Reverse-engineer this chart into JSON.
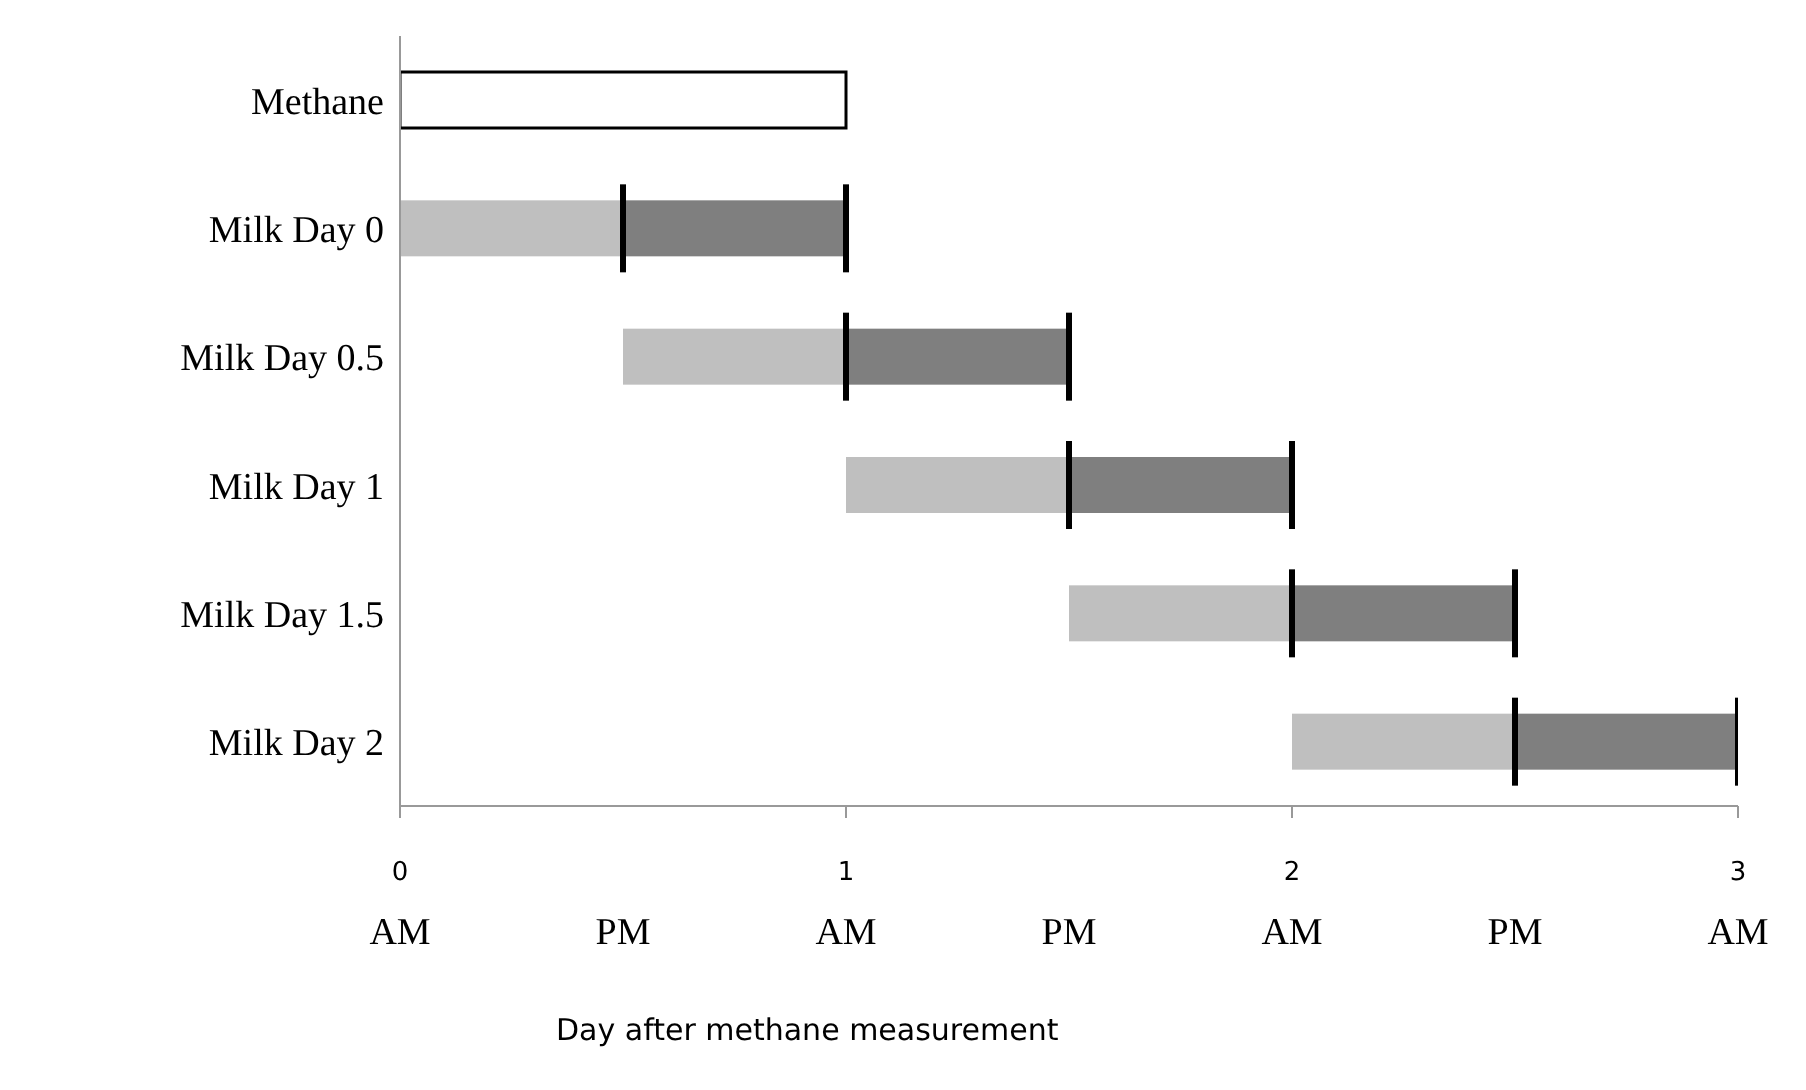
{
  "chart_data": {
    "type": "bar",
    "orientation": "horizontal",
    "categories": [
      "Methane",
      "Milk Day 0",
      "Milk Day 0.5",
      "Milk Day 1",
      "Milk Day 1.5",
      "Milk Day 2"
    ],
    "series": [
      {
        "color": "#ffffff",
        "base": [
          0,
          null,
          null,
          null,
          null,
          null
        ],
        "values": [
          1,
          null,
          null,
          null,
          null,
          null
        ]
      },
      {
        "color": "#bfbfbf",
        "base": [
          null,
          0,
          0.5,
          1,
          1.5,
          2
        ],
        "values": [
          null,
          0.5,
          0.5,
          0.5,
          0.5,
          0.5
        ]
      },
      {
        "color": "#7f7f7f",
        "base": [
          null,
          0.5,
          1,
          1.5,
          2,
          2.5
        ],
        "values": [
          null,
          0.5,
          0.5,
          0.5,
          0.5,
          0.5
        ]
      }
    ],
    "xlim": [
      0,
      3
    ],
    "xticks": [
      0,
      1,
      2,
      3
    ],
    "annotations": [
      "AM",
      "PM",
      "AM",
      "PM",
      "AM",
      "PM",
      "AM"
    ],
    "xlabel": "Day after methane measurement",
    "grid": false,
    "legend": false
  }
}
